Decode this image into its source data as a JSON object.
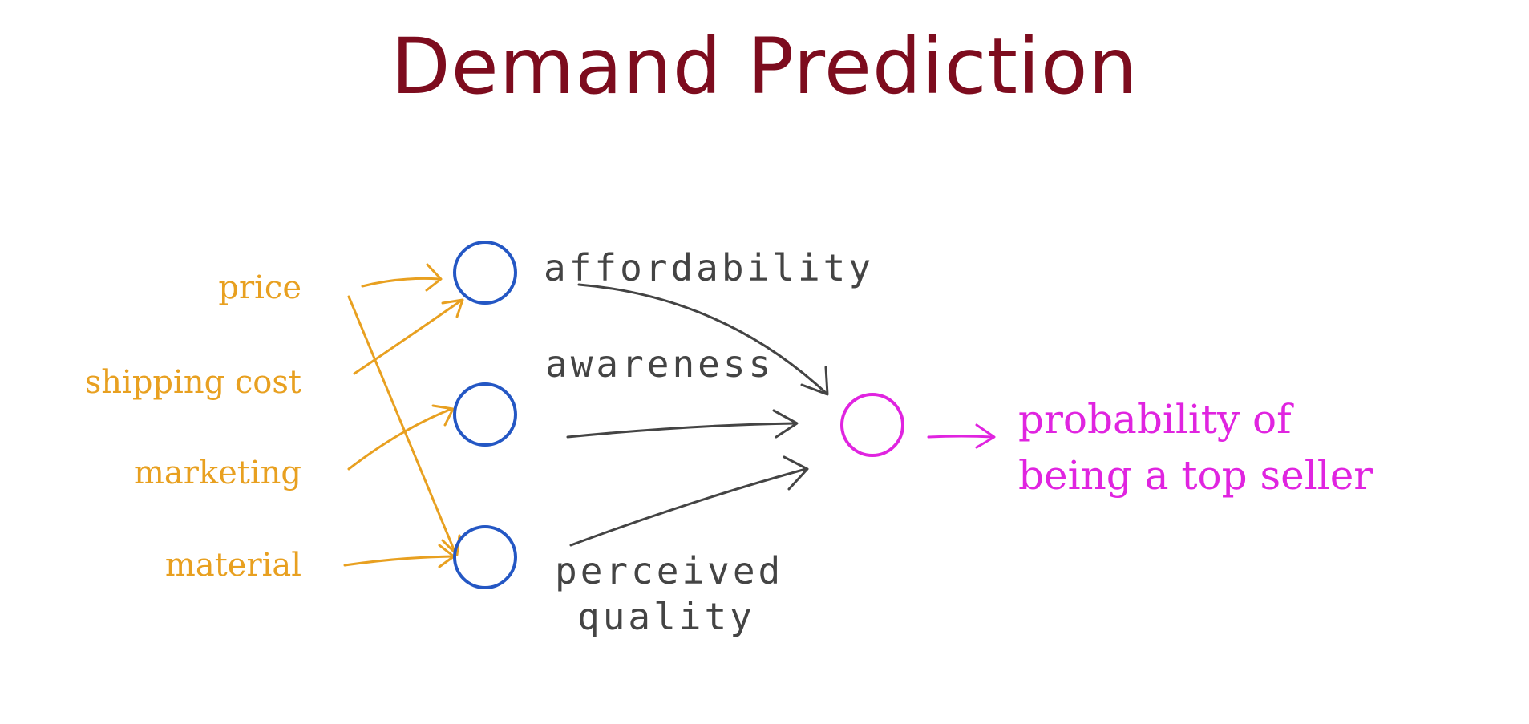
{
  "title": "Demand Prediction",
  "inputs": [
    "price",
    "shipping cost",
    "marketing",
    "material"
  ],
  "hidden": {
    "affordability": "affordability",
    "awareness": "awareness",
    "perceived_line1": "perceived",
    "perceived_line2": "quality"
  },
  "output": {
    "line1": "probability of",
    "line2": "being a top seller"
  },
  "colors": {
    "title": "#7d0c1e",
    "input": "#e8a020",
    "hidden_node": "#2457c4",
    "hidden_text": "#444444",
    "output": "#e024e0"
  }
}
